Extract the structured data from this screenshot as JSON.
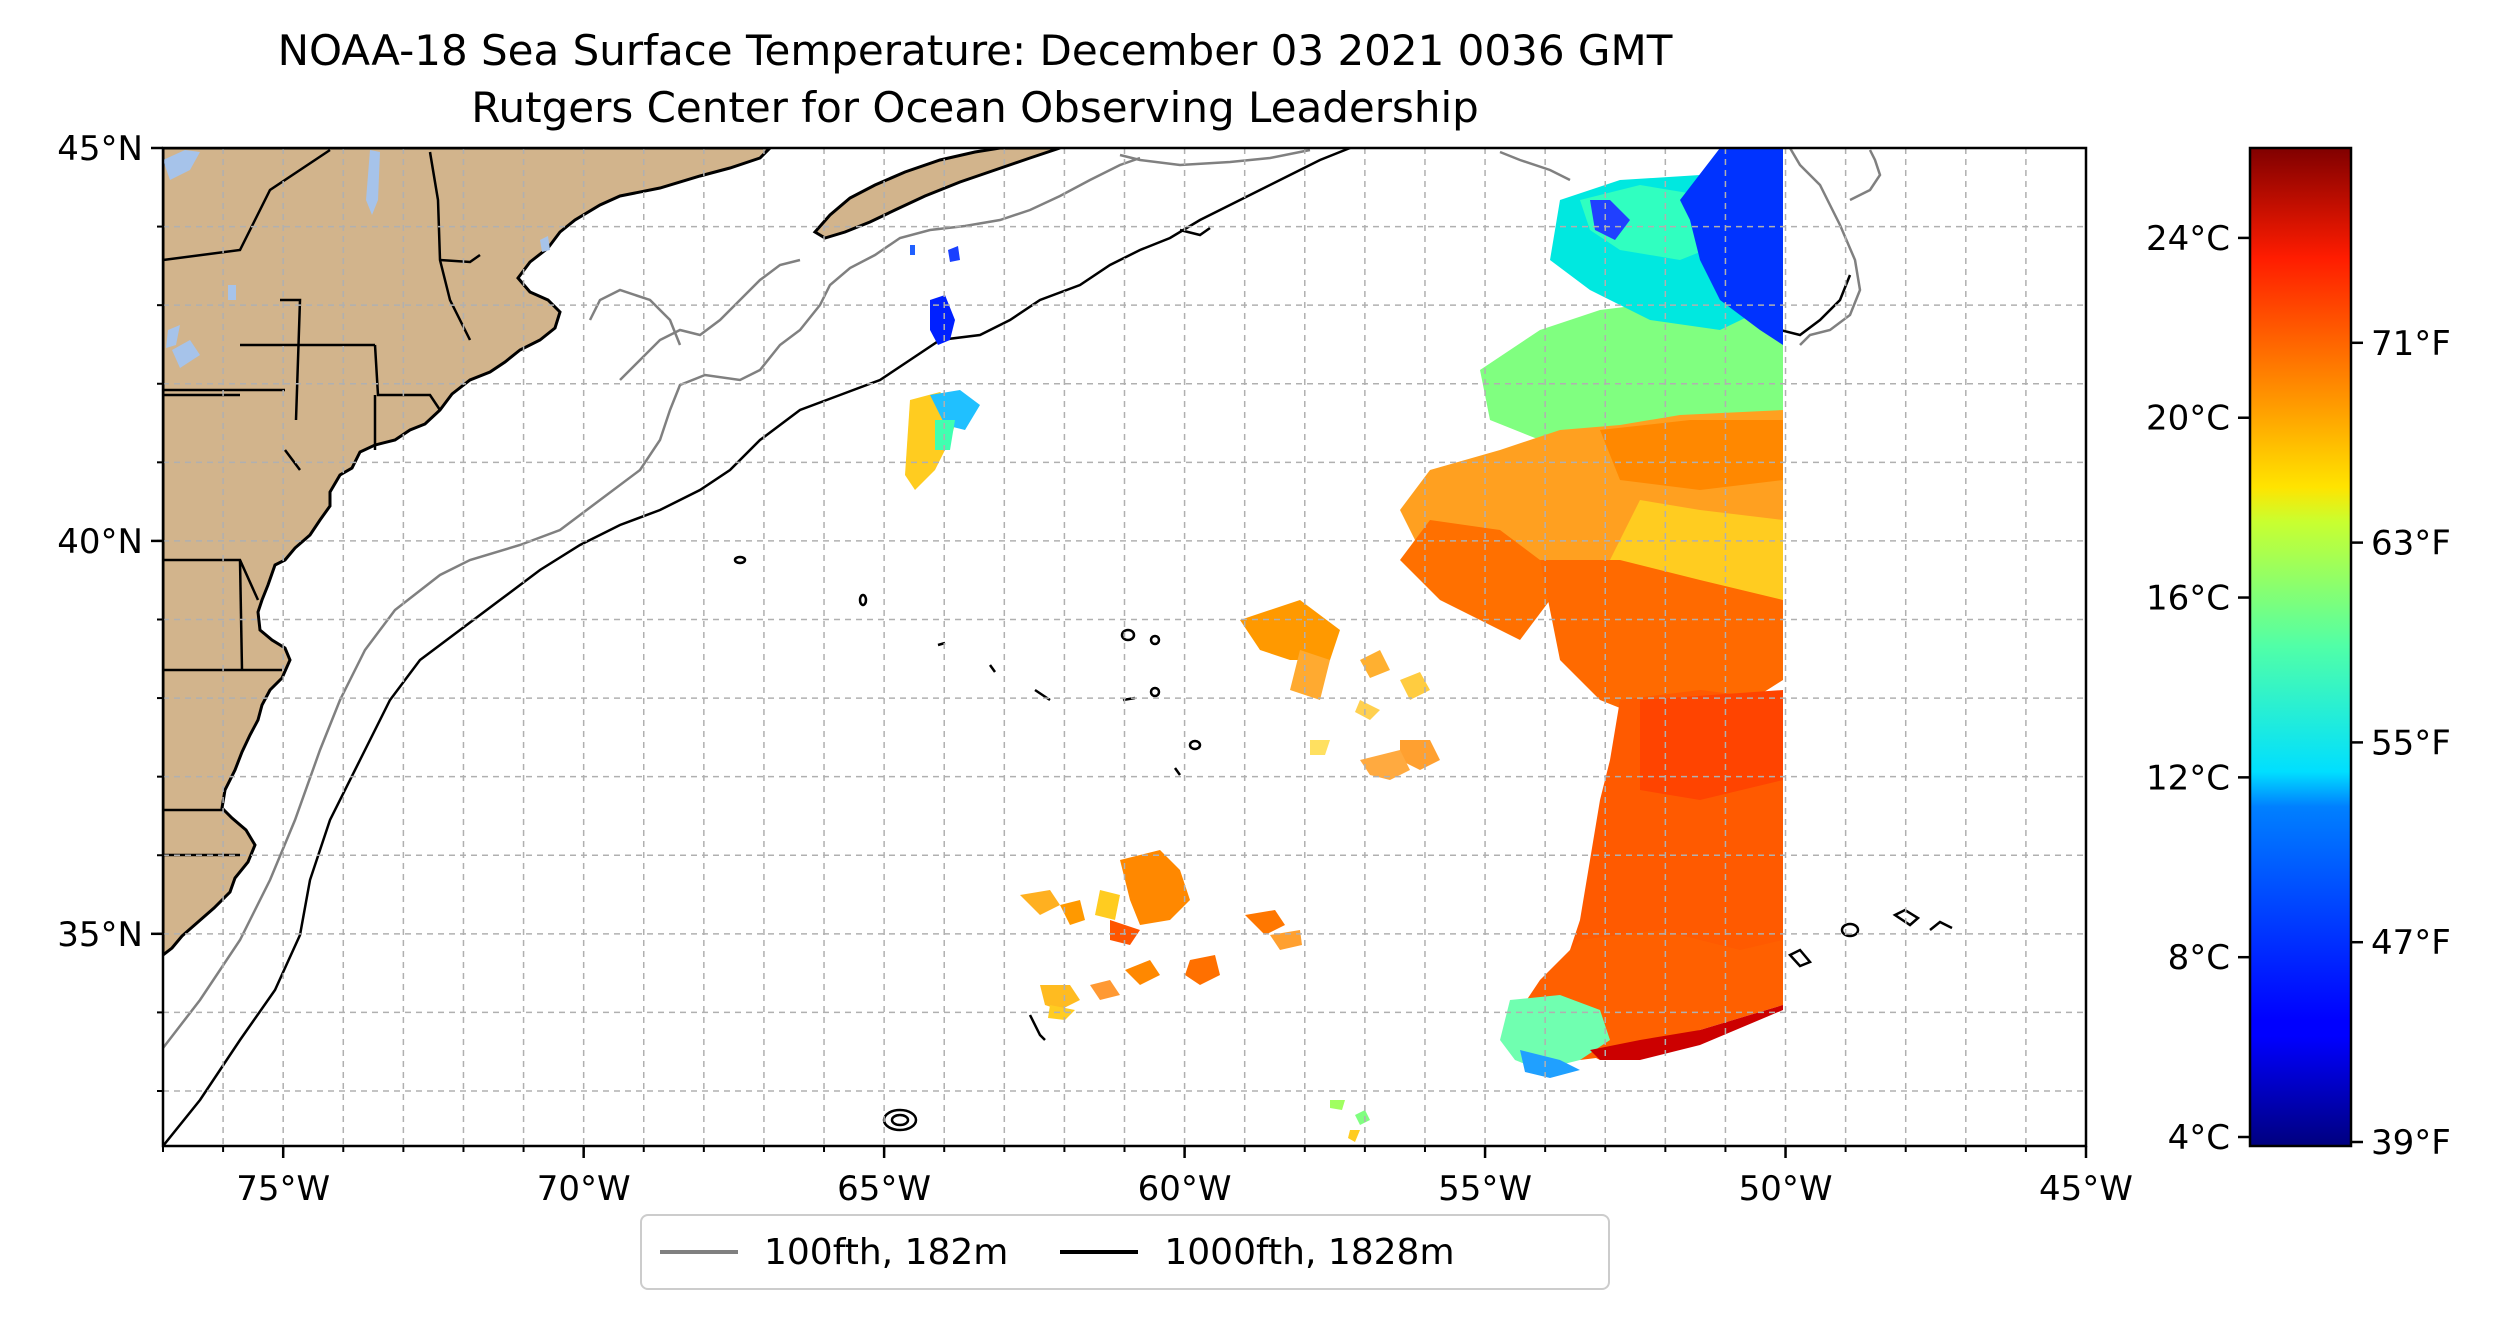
{
  "title": "NOAA-18 Sea Surface Temperature: December 03 2021 0036 GMT",
  "subtitle": "Rutgers Center for Ocean Observing Leadership",
  "map": {
    "extent_lon": [
      -77,
      -45
    ],
    "extent_lat": [
      32.3,
      45
    ],
    "lon_ticks": [
      {
        "value": -75,
        "label": "75°W"
      },
      {
        "value": -70,
        "label": "70°W"
      },
      {
        "value": -65,
        "label": "65°W"
      },
      {
        "value": -60,
        "label": "60°W"
      },
      {
        "value": -55,
        "label": "55°W"
      },
      {
        "value": -50,
        "label": "50°W"
      },
      {
        "value": -45,
        "label": "45°W"
      }
    ],
    "lat_ticks": [
      {
        "value": 45,
        "label": "45°N"
      },
      {
        "value": 40,
        "label": "40°N"
      },
      {
        "value": 35,
        "label": "35°N"
      }
    ],
    "land_color": "#d2b48c",
    "lake_color": "#a6c3ea",
    "grid": "dashed, 1° spacing"
  },
  "legend": {
    "items": [
      {
        "label": "100fth, 182m",
        "color": "#808080"
      },
      {
        "label": "1000fth, 1828m",
        "color": "#000000"
      }
    ]
  },
  "colorbar": {
    "colormap": "jet",
    "range_c": [
      3.8,
      26.0
    ],
    "celsius_ticks": [
      {
        "value": 4,
        "label": "4°C"
      },
      {
        "value": 8,
        "label": "8°C"
      },
      {
        "value": 12,
        "label": "12°C"
      },
      {
        "value": 16,
        "label": "16°C"
      },
      {
        "value": 20,
        "label": "20°C"
      },
      {
        "value": 24,
        "label": "24°C"
      }
    ],
    "fahrenheit_ticks": [
      {
        "value": 39,
        "label": "39°F"
      },
      {
        "value": 47,
        "label": "47°F"
      },
      {
        "value": 55,
        "label": "55°F"
      },
      {
        "value": 63,
        "label": "63°F"
      },
      {
        "value": 71,
        "label": "71°F"
      }
    ]
  }
}
